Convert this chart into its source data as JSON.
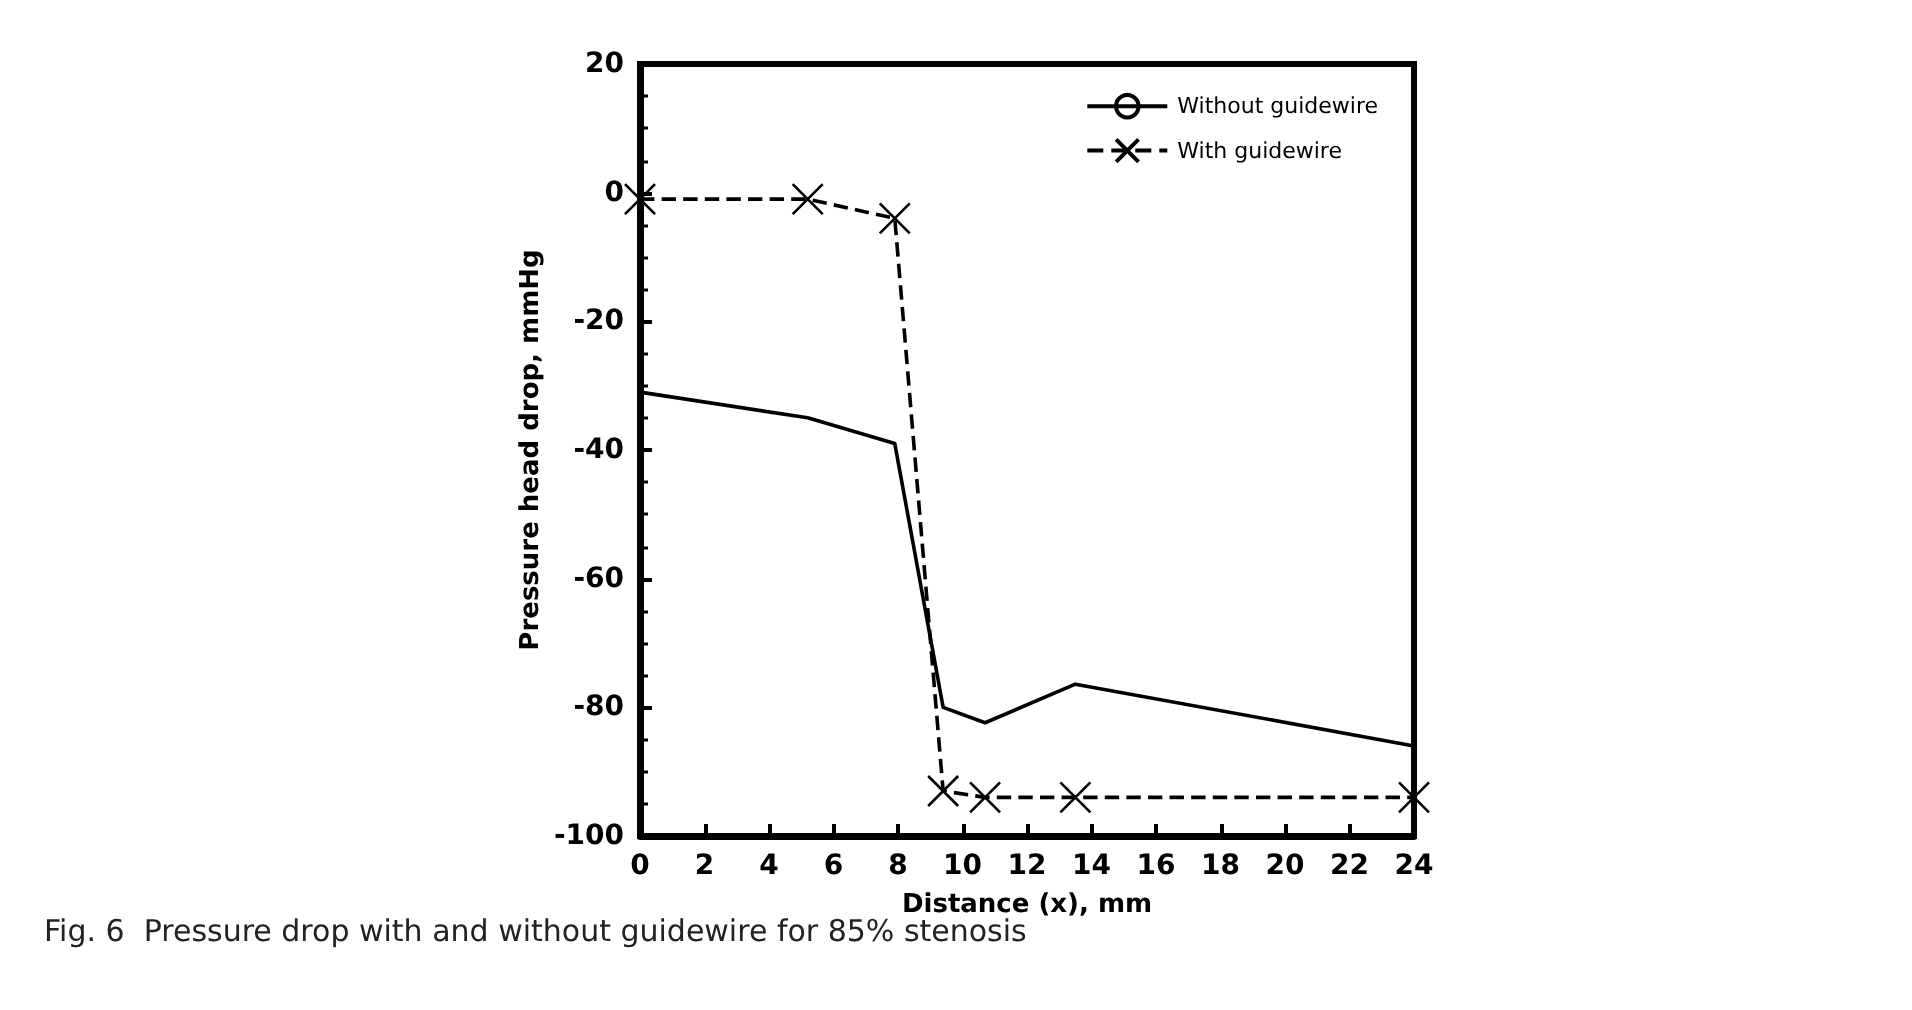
{
  "chart_data": {
    "type": "line",
    "xlabel": "Distance (x), mm",
    "ylabel": "Pressure head drop, mmHg",
    "annotations": [
      "Fig. 6  Pressure drop with and without guidewire for 85% stenosis"
    ],
    "series": [
      {
        "name": "Without guidewire",
        "color": "#000000",
        "x": [
          0,
          5.2,
          7.9,
          9.4,
          10.7,
          13.5,
          24
        ],
        "values": [
          -31,
          -35,
          -39,
          -80,
          -82.4,
          -76.4,
          -86
        ],
        "marker": "none",
        "line_style": "solid"
      },
      {
        "name": "With guidewire",
        "color": "#000000",
        "x": [
          0,
          5.2,
          7.9,
          9.4,
          10.7,
          13.5,
          24
        ],
        "values": [
          -1,
          -1,
          -4,
          -93,
          -94,
          -94,
          -94
        ],
        "marker": "cross",
        "line_style": "dashed"
      }
    ],
    "xlim": [
      0,
      24
    ],
    "xticks": [
      0,
      2,
      4,
      6,
      8,
      10,
      12,
      14,
      16,
      18,
      20,
      22,
      24
    ],
    "ylim": [
      -100,
      20
    ],
    "yticks": [
      -100,
      -80,
      -60,
      -40,
      -20,
      0,
      20
    ],
    "grid": false,
    "legend": "top right"
  }
}
